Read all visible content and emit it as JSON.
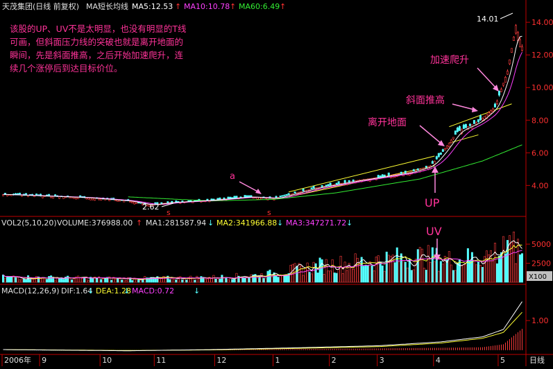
{
  "header": {
    "stock_name": "天茂集团(日线 前复权)",
    "ma_label": "MA短长均线",
    "ma5": "MA5:12.53",
    "ma10": "MA10:10.78",
    "ma60": "MA60:6.49"
  },
  "annotation_text": {
    "line1": "该股的UP、UV不是太明显，也没有明显的T线",
    "line2": "可画，但斜面压力线的突破也就是离开地面的",
    "line3": "瞬间，先是斜面推高，之后开始加速爬升，连",
    "line4": "续几个涨停后到达目标价位。"
  },
  "labels": {
    "a": "a",
    "up": "UP",
    "uv": "UV",
    "leave_ground": "离开地面",
    "slope_push": "斜面推高",
    "accelerate": "加速爬升",
    "high_price": "14.01",
    "low_price": "2.62",
    "s_mark_1": "s",
    "s_mark_2": "s"
  },
  "volume_header": {
    "vol": "VOL2(5,10,20)",
    "volume": "VOLUME:376988.00",
    "ma1": "MA1:281587.94",
    "ma2": "MA2:341966.88",
    "ma3": "MA3:347271.72"
  },
  "macd_header": {
    "macd": "MACD(12,26,9)",
    "dif": "DIF:1.64",
    "dea": "DEA:1.28",
    "macd_val": "MACD:0.72"
  },
  "footer": {
    "period": "日线",
    "unit": "X100"
  },
  "colors": {
    "up": "#ff3c3c",
    "down": "#54ffff",
    "ma5": "#ffffff",
    "ma10": "#ff40ff",
    "ma60": "#33ee33",
    "channel": "#ffff33",
    "annotation": "#ff3399",
    "axis": "#c00000"
  },
  "chart_data": {
    "type": "candlestick",
    "price_axis": {
      "ylim": [
        2.4,
        14.6
      ],
      "ticks": [
        "4.00",
        "6.00",
        "8.00",
        "10.00",
        "12.00",
        "14.00"
      ],
      "tick_values": [
        4,
        6,
        8,
        10,
        12,
        14
      ]
    },
    "volume_axis": {
      "ylim": [
        0,
        7000
      ],
      "ticks": [
        "2500",
        "5000"
      ],
      "tick_values": [
        2500,
        5000
      ]
    },
    "macd_axis": {
      "ylim": [
        -0.05,
        1.8
      ],
      "ticks": [
        "1.00"
      ],
      "tick_values": [
        1.0
      ]
    },
    "x_ticks": [
      "2006年",
      "9",
      "10",
      "11",
      "12",
      "1",
      "2",
      "3",
      "4",
      "5"
    ],
    "x_tick_bars": [
      0,
      18,
      47,
      73,
      102,
      130,
      157,
      180,
      207,
      238
    ],
    "n_bars": 250,
    "close_keypoints": [
      [
        0,
        3.45
      ],
      [
        20,
        3.35
      ],
      [
        40,
        3.25
      ],
      [
        60,
        3.05
      ],
      [
        70,
        2.8
      ],
      [
        80,
        2.95
      ],
      [
        100,
        3.1
      ],
      [
        118,
        3.3
      ],
      [
        130,
        3.2
      ],
      [
        150,
        3.85
      ],
      [
        170,
        4.3
      ],
      [
        195,
        4.8
      ],
      [
        205,
        5.2
      ],
      [
        210,
        5.9
      ],
      [
        218,
        7.3
      ],
      [
        228,
        7.9
      ],
      [
        236,
        8.8
      ],
      [
        242,
        11.0
      ],
      [
        246,
        13.8
      ],
      [
        249,
        12.5
      ]
    ],
    "ma60_keypoints": [
      [
        60,
        3.3
      ],
      [
        100,
        3.05
      ],
      [
        130,
        3.15
      ],
      [
        160,
        3.55
      ],
      [
        200,
        4.4
      ],
      [
        230,
        5.5
      ],
      [
        249,
        6.49
      ]
    ],
    "volume_keypoints": [
      [
        0,
        700
      ],
      [
        60,
        500
      ],
      [
        100,
        650
      ],
      [
        125,
        1000
      ],
      [
        150,
        2200
      ],
      [
        180,
        3000
      ],
      [
        200,
        3500
      ],
      [
        215,
        3000
      ],
      [
        230,
        3500
      ],
      [
        240,
        4500
      ],
      [
        249,
        3769.88
      ]
    ],
    "macd_dif_keypoints": [
      [
        0,
        0.02
      ],
      [
        60,
        -0.02
      ],
      [
        100,
        0.02
      ],
      [
        140,
        0.08
      ],
      [
        180,
        0.15
      ],
      [
        210,
        0.28
      ],
      [
        230,
        0.45
      ],
      [
        240,
        0.7
      ],
      [
        249,
        1.64
      ]
    ],
    "macd_dea_keypoints": [
      [
        0,
        0.02
      ],
      [
        60,
        -0.01
      ],
      [
        100,
        0.01
      ],
      [
        140,
        0.06
      ],
      [
        180,
        0.12
      ],
      [
        210,
        0.24
      ],
      [
        230,
        0.4
      ],
      [
        240,
        0.6
      ],
      [
        249,
        1.28
      ]
    ]
  }
}
